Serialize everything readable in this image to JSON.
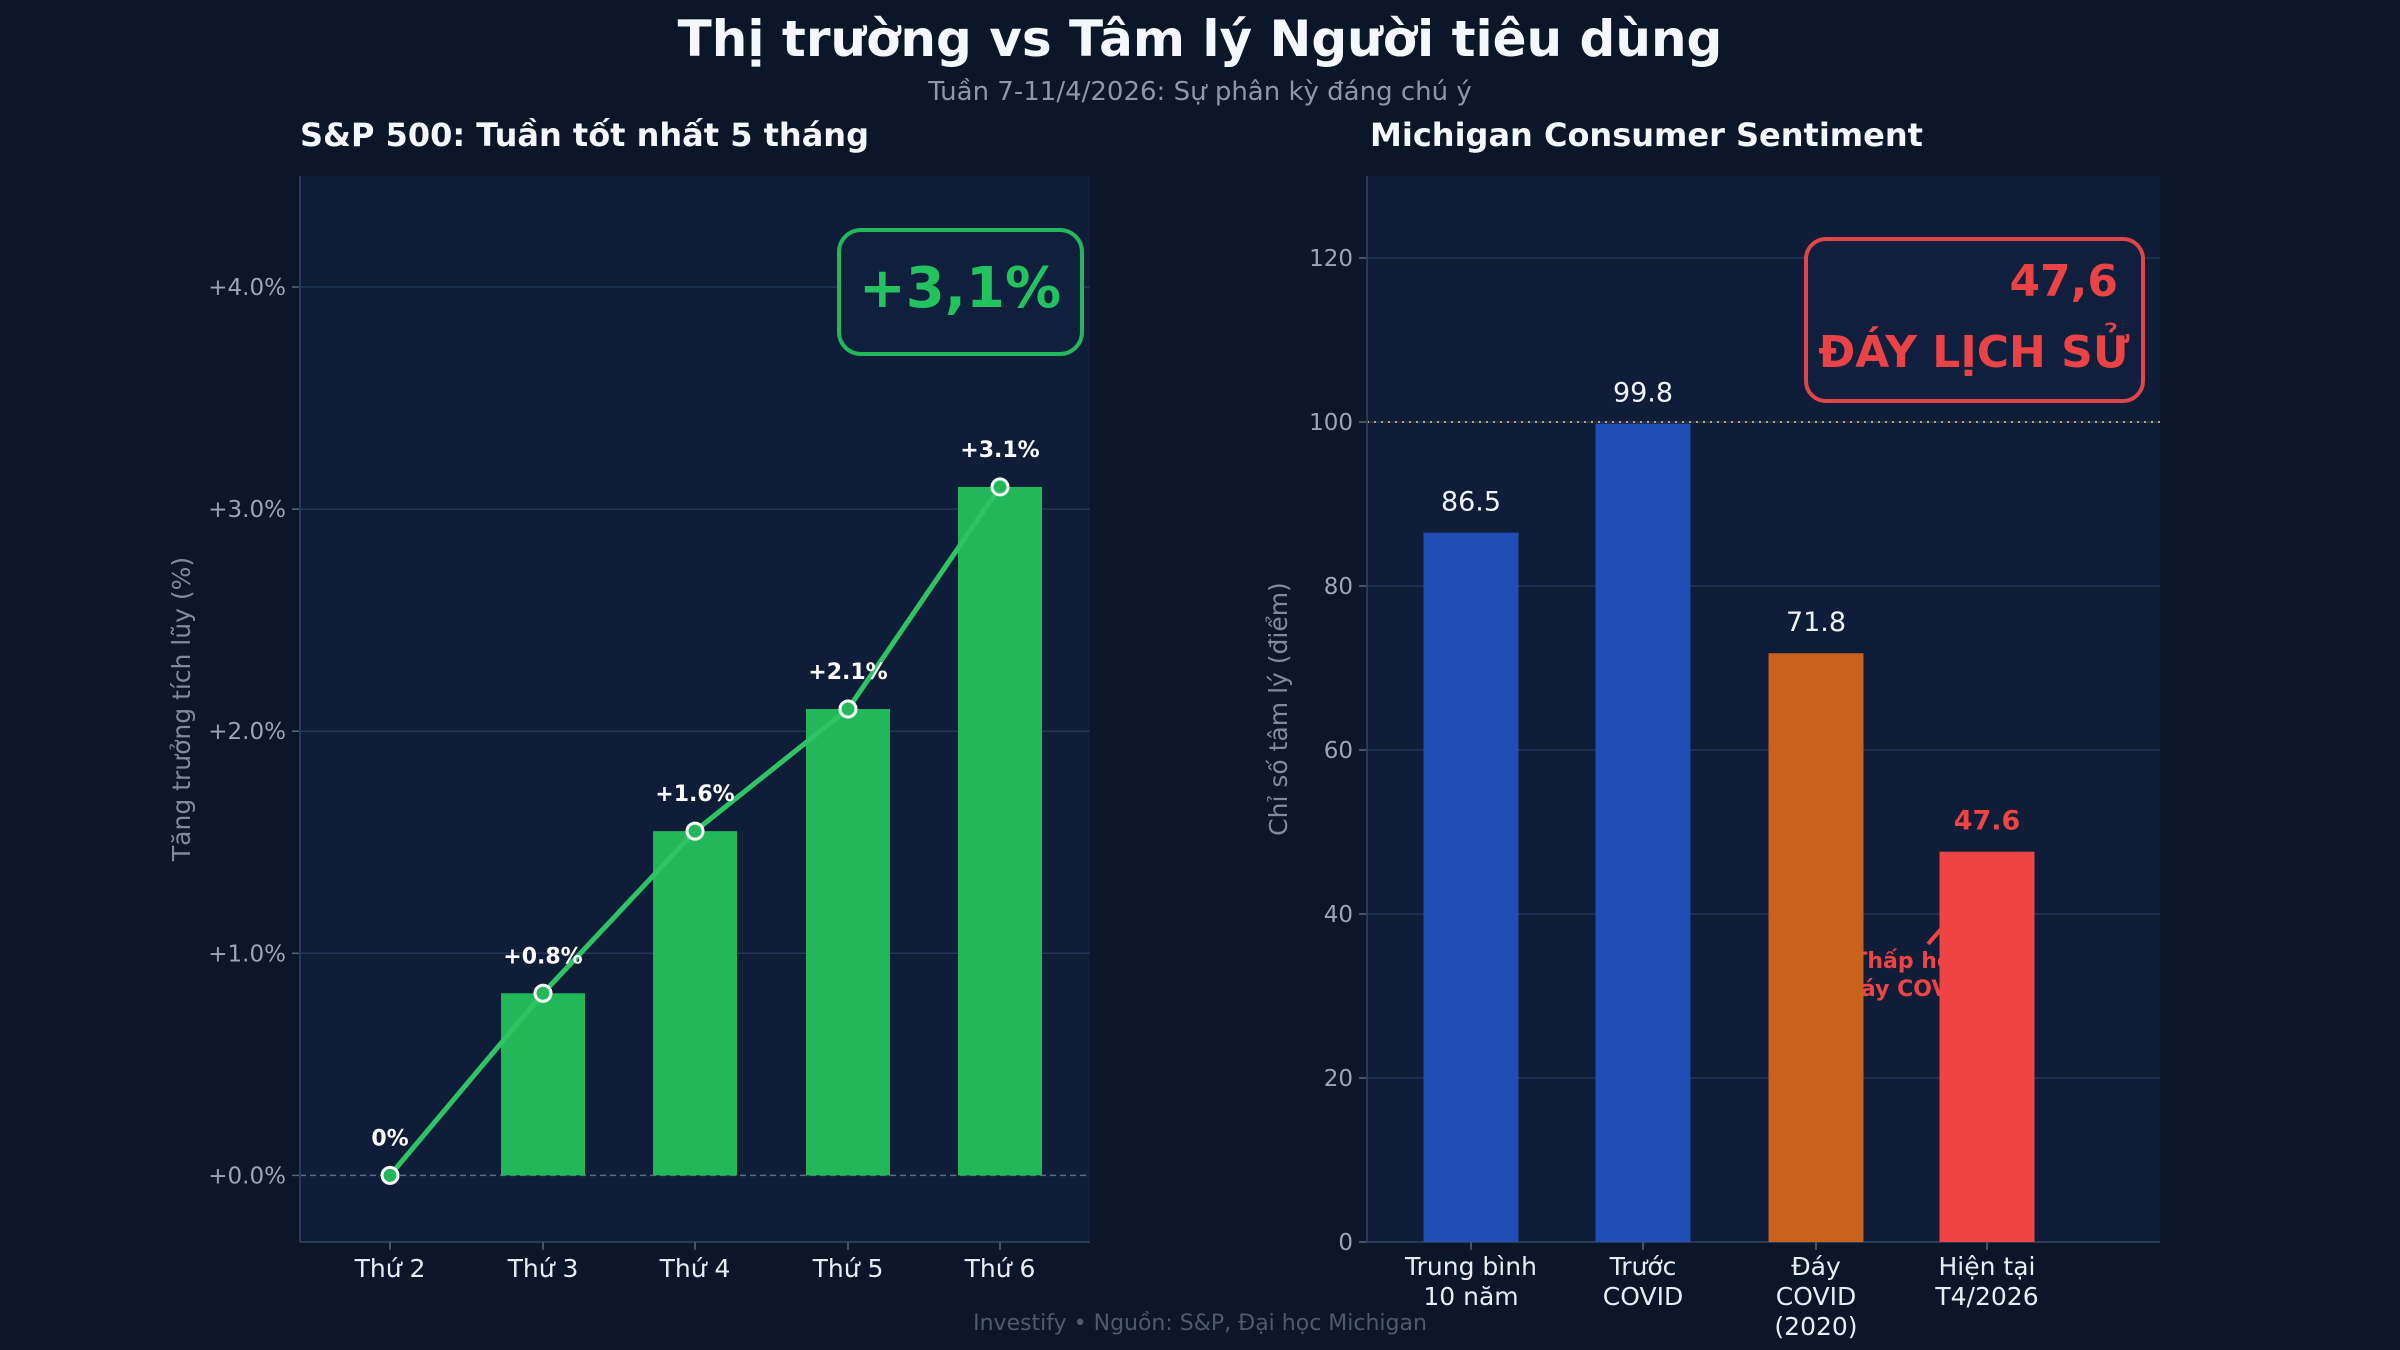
{
  "header": {
    "title": "Thị trường vs Tâm lý Người tiêu dùng",
    "subtitle": "Tuần 7-11/4/2026: Sự phân kỳ đáng chú ý"
  },
  "footer": "Investify  •  Nguồn: S&P, Đại học Michigan",
  "colors": {
    "background": "#0b1628",
    "plot_background": "#0f1d38",
    "green": "#22b85a",
    "blue": "#1f4fb6",
    "orange": "#c8621c",
    "red": "#ef4444",
    "reference_line": "#c8a64a"
  },
  "chart_data": [
    {
      "type": "bar",
      "title": "S&P 500: Tuần tốt nhất 5 tháng",
      "ylabel": "Tăng trưởng tích lũy (%)",
      "xlabel": "",
      "categories": [
        "Thứ 2",
        "Thứ 3",
        "Thứ 4",
        "Thứ 5",
        "Thứ 6"
      ],
      "values": [
        0,
        0.82,
        1.55,
        2.1,
        3.1
      ],
      "data_labels": [
        "0%",
        "+0.8%",
        "+1.6%",
        "+2.1%",
        "+3.1%"
      ],
      "line_overlay": true,
      "ylim": [
        -0.3,
        4.5
      ],
      "yticks": [
        0,
        1,
        2,
        3,
        4
      ],
      "ytick_labels": [
        "+0.0%",
        "+1.0%",
        "+2.0%",
        "+3.0%",
        "+4.0%"
      ],
      "zero_line": "dashed",
      "grid": true,
      "callout": "+3,1%"
    },
    {
      "type": "bar",
      "title": "Michigan Consumer Sentiment",
      "ylabel": "Chỉ số tâm lý (điểm)",
      "xlabel": "",
      "categories": [
        "Trung bình\n10 năm",
        "Trước\nCOVID",
        "Đáy\nCOVID\n(2020)",
        "Hiện tại\nT4/2026"
      ],
      "values": [
        86.5,
        99.8,
        71.8,
        47.6
      ],
      "data_labels": [
        "86.5",
        "99.8",
        "71.8",
        "47.6"
      ],
      "bar_colors": [
        "#1f4fb6",
        "#1f4fb6",
        "#c8621c",
        "#ef4444"
      ],
      "ylim": [
        0,
        130
      ],
      "yticks": [
        0,
        20,
        40,
        60,
        80,
        100,
        120
      ],
      "ytick_labels": [
        "0",
        "20",
        "40",
        "60",
        "80",
        "100",
        "120"
      ],
      "reference_line": 100,
      "grid": true,
      "callout_value": "47,6",
      "callout_text": "ĐÁY LỊCH SỬ",
      "annotation": "Thấp hơn\nđáy COVID"
    }
  ]
}
